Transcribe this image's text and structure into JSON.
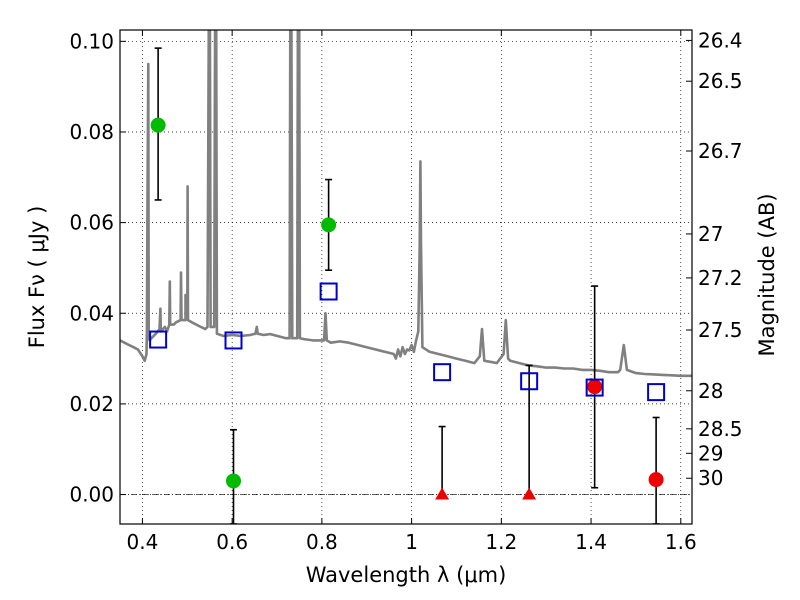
{
  "chart_data": {
    "type": "scatter",
    "xlabel": "Wavelength  λ (μm)",
    "ylabel": "Flux  Fν  ( μJy )",
    "y2label": "Magnitude (AB)",
    "xlim": [
      0.35,
      1.625
    ],
    "ylim": [
      -0.0065,
      0.1025
    ],
    "grid": true,
    "x_ticks": [
      0.4,
      0.6,
      0.8,
      1.0,
      1.2,
      1.4,
      1.6
    ],
    "x_tick_labels": [
      "0.4",
      "0.6",
      "0.8",
      "1",
      "1.2",
      "1.4",
      "1.6"
    ],
    "y_ticks": [
      0.0,
      0.02,
      0.04,
      0.06,
      0.08,
      0.1
    ],
    "y_tick_labels": [
      "0.00",
      "0.02",
      "0.04",
      "0.06",
      "0.08",
      "0.10"
    ],
    "y2_ticks": [
      {
        "label": "26.4",
        "flux": 0.1002
      },
      {
        "label": "26.5",
        "flux": 0.0912
      },
      {
        "label": "26.7",
        "flux": 0.0758
      },
      {
        "label": "27",
        "flux": 0.0575
      },
      {
        "label": "27.2",
        "flux": 0.0478
      },
      {
        "label": "27.5",
        "flux": 0.0363
      },
      {
        "label": "28",
        "flux": 0.0229
      },
      {
        "label": "28.5",
        "flux": 0.0145
      },
      {
        "label": "29",
        "flux": 0.0091
      },
      {
        "label": "30",
        "flux": 0.0036
      }
    ],
    "series": [
      {
        "marker": "circle",
        "color": "#00bb00",
        "points": [
          {
            "x": 0.435,
            "y": 0.0815,
            "ylo": 0.065,
            "yhi": 0.0985
          },
          {
            "x": 0.603,
            "y": 0.003,
            "ylo": -0.0065,
            "yhi": 0.0143
          },
          {
            "x": 0.815,
            "y": 0.0595,
            "ylo": 0.0495,
            "yhi": 0.0695
          }
        ]
      },
      {
        "marker": "triangle",
        "color": "#ee0000",
        "points": [
          {
            "x": 1.068,
            "y": 0.0,
            "ylo": 0.0,
            "yhi": 0.015
          },
          {
            "x": 1.262,
            "y": 0.0,
            "ylo": 0.0,
            "yhi": 0.0285
          }
        ]
      },
      {
        "marker": "circle",
        "color": "#ee0000",
        "points": [
          {
            "x": 1.408,
            "y": 0.0238,
            "ylo": 0.0015,
            "yhi": 0.046
          },
          {
            "x": 1.545,
            "y": 0.0033,
            "ylo": -0.0065,
            "yhi": 0.017
          }
        ]
      },
      {
        "marker": "square",
        "color": "#0000cc",
        "points": [
          {
            "x": 0.435,
            "y": 0.0342
          },
          {
            "x": 0.603,
            "y": 0.034
          },
          {
            "x": 0.815,
            "y": 0.0448
          },
          {
            "x": 1.068,
            "y": 0.027
          },
          {
            "x": 1.262,
            "y": 0.025
          },
          {
            "x": 1.408,
            "y": 0.0236
          },
          {
            "x": 1.545,
            "y": 0.0226
          }
        ]
      }
    ],
    "model_spectrum": {
      "color": "#808080",
      "points": [
        [
          0.35,
          0.034
        ],
        [
          0.36,
          0.0335
        ],
        [
          0.37,
          0.033
        ],
        [
          0.38,
          0.0325
        ],
        [
          0.39,
          0.032
        ],
        [
          0.4,
          0.0305
        ],
        [
          0.405,
          0.0295
        ],
        [
          0.409,
          0.031
        ],
        [
          0.41,
          0.036
        ],
        [
          0.4115,
          0.07
        ],
        [
          0.413,
          0.095
        ],
        [
          0.414,
          0.035
        ],
        [
          0.416,
          0.034
        ],
        [
          0.42,
          0.0345
        ],
        [
          0.43,
          0.0355
        ],
        [
          0.438,
          0.0365
        ],
        [
          0.44,
          0.041
        ],
        [
          0.441,
          0.036
        ],
        [
          0.45,
          0.037
        ],
        [
          0.455,
          0.036
        ],
        [
          0.46,
          0.0375
        ],
        [
          0.461,
          0.047
        ],
        [
          0.462,
          0.0375
        ],
        [
          0.47,
          0.0375
        ],
        [
          0.475,
          0.038
        ],
        [
          0.485,
          0.0385
        ],
        [
          0.486,
          0.049
        ],
        [
          0.487,
          0.0385
        ],
        [
          0.496,
          0.0385
        ],
        [
          0.4959,
          0.044
        ],
        [
          0.4961,
          0.0385
        ],
        [
          0.5,
          0.0388
        ],
        [
          0.5007,
          0.068
        ],
        [
          0.5015,
          0.0385
        ],
        [
          0.51,
          0.038
        ],
        [
          0.52,
          0.0375
        ],
        [
          0.53,
          0.037
        ],
        [
          0.54,
          0.0365
        ],
        [
          0.545,
          0.037
        ],
        [
          0.548,
          0.105
        ],
        [
          0.5505,
          0.105
        ],
        [
          0.552,
          0.037
        ],
        [
          0.56,
          0.037
        ],
        [
          0.562,
          0.105
        ],
        [
          0.5645,
          0.105
        ],
        [
          0.566,
          0.0355
        ],
        [
          0.58,
          0.035
        ],
        [
          0.6,
          0.0352
        ],
        [
          0.62,
          0.035
        ],
        [
          0.64,
          0.0352
        ],
        [
          0.652,
          0.0355
        ],
        [
          0.655,
          0.037
        ],
        [
          0.657,
          0.0355
        ],
        [
          0.67,
          0.0352
        ],
        [
          0.685,
          0.0354
        ],
        [
          0.7,
          0.035
        ],
        [
          0.72,
          0.0345
        ],
        [
          0.728,
          0.0345
        ],
        [
          0.7295,
          0.105
        ],
        [
          0.732,
          0.105
        ],
        [
          0.734,
          0.0345
        ],
        [
          0.745,
          0.0345
        ],
        [
          0.7465,
          0.105
        ],
        [
          0.7495,
          0.105
        ],
        [
          0.751,
          0.0345
        ],
        [
          0.76,
          0.0343
        ],
        [
          0.78,
          0.034
        ],
        [
          0.8,
          0.034
        ],
        [
          0.805,
          0.034
        ],
        [
          0.808,
          0.04
        ],
        [
          0.811,
          0.034
        ],
        [
          0.82,
          0.0335
        ],
        [
          0.84,
          0.0338
        ],
        [
          0.86,
          0.0335
        ],
        [
          0.88,
          0.033
        ],
        [
          0.9,
          0.0325
        ],
        [
          0.92,
          0.032
        ],
        [
          0.94,
          0.0315
        ],
        [
          0.96,
          0.031
        ],
        [
          0.965,
          0.03
        ],
        [
          0.97,
          0.032
        ],
        [
          0.975,
          0.0305
        ],
        [
          0.98,
          0.0325
        ],
        [
          0.985,
          0.031
        ],
        [
          0.99,
          0.032
        ],
        [
          0.995,
          0.0318
        ],
        [
          1.0,
          0.033
        ],
        [
          1.005,
          0.0315
        ],
        [
          1.01,
          0.034
        ],
        [
          1.015,
          0.036
        ],
        [
          1.018,
          0.055
        ],
        [
          1.0195,
          0.0735
        ],
        [
          1.021,
          0.055
        ],
        [
          1.024,
          0.0325
        ],
        [
          1.04,
          0.0315
        ],
        [
          1.06,
          0.031
        ],
        [
          1.08,
          0.0305
        ],
        [
          1.1,
          0.03
        ],
        [
          1.12,
          0.0295
        ],
        [
          1.14,
          0.029
        ],
        [
          1.152,
          0.0305
        ],
        [
          1.157,
          0.0365
        ],
        [
          1.162,
          0.0295
        ],
        [
          1.18,
          0.0292
        ],
        [
          1.19,
          0.029
        ],
        [
          1.205,
          0.031
        ],
        [
          1.21,
          0.0385
        ],
        [
          1.215,
          0.03
        ],
        [
          1.22,
          0.0295
        ],
        [
          1.24,
          0.029
        ],
        [
          1.26,
          0.0285
        ],
        [
          1.28,
          0.0283
        ],
        [
          1.3,
          0.028
        ],
        [
          1.32,
          0.028
        ],
        [
          1.34,
          0.0278
        ],
        [
          1.36,
          0.0278
        ],
        [
          1.38,
          0.0275
        ],
        [
          1.4,
          0.0275
        ],
        [
          1.42,
          0.0273
        ],
        [
          1.44,
          0.027
        ],
        [
          1.46,
          0.027
        ],
        [
          1.465,
          0.0275
        ],
        [
          1.473,
          0.033
        ],
        [
          1.48,
          0.0275
        ],
        [
          1.5,
          0.0268
        ],
        [
          1.52,
          0.0266
        ],
        [
          1.54,
          0.0265
        ],
        [
          1.56,
          0.0264
        ],
        [
          1.58,
          0.0263
        ],
        [
          1.6,
          0.0262
        ],
        [
          1.625,
          0.0262
        ]
      ]
    }
  }
}
